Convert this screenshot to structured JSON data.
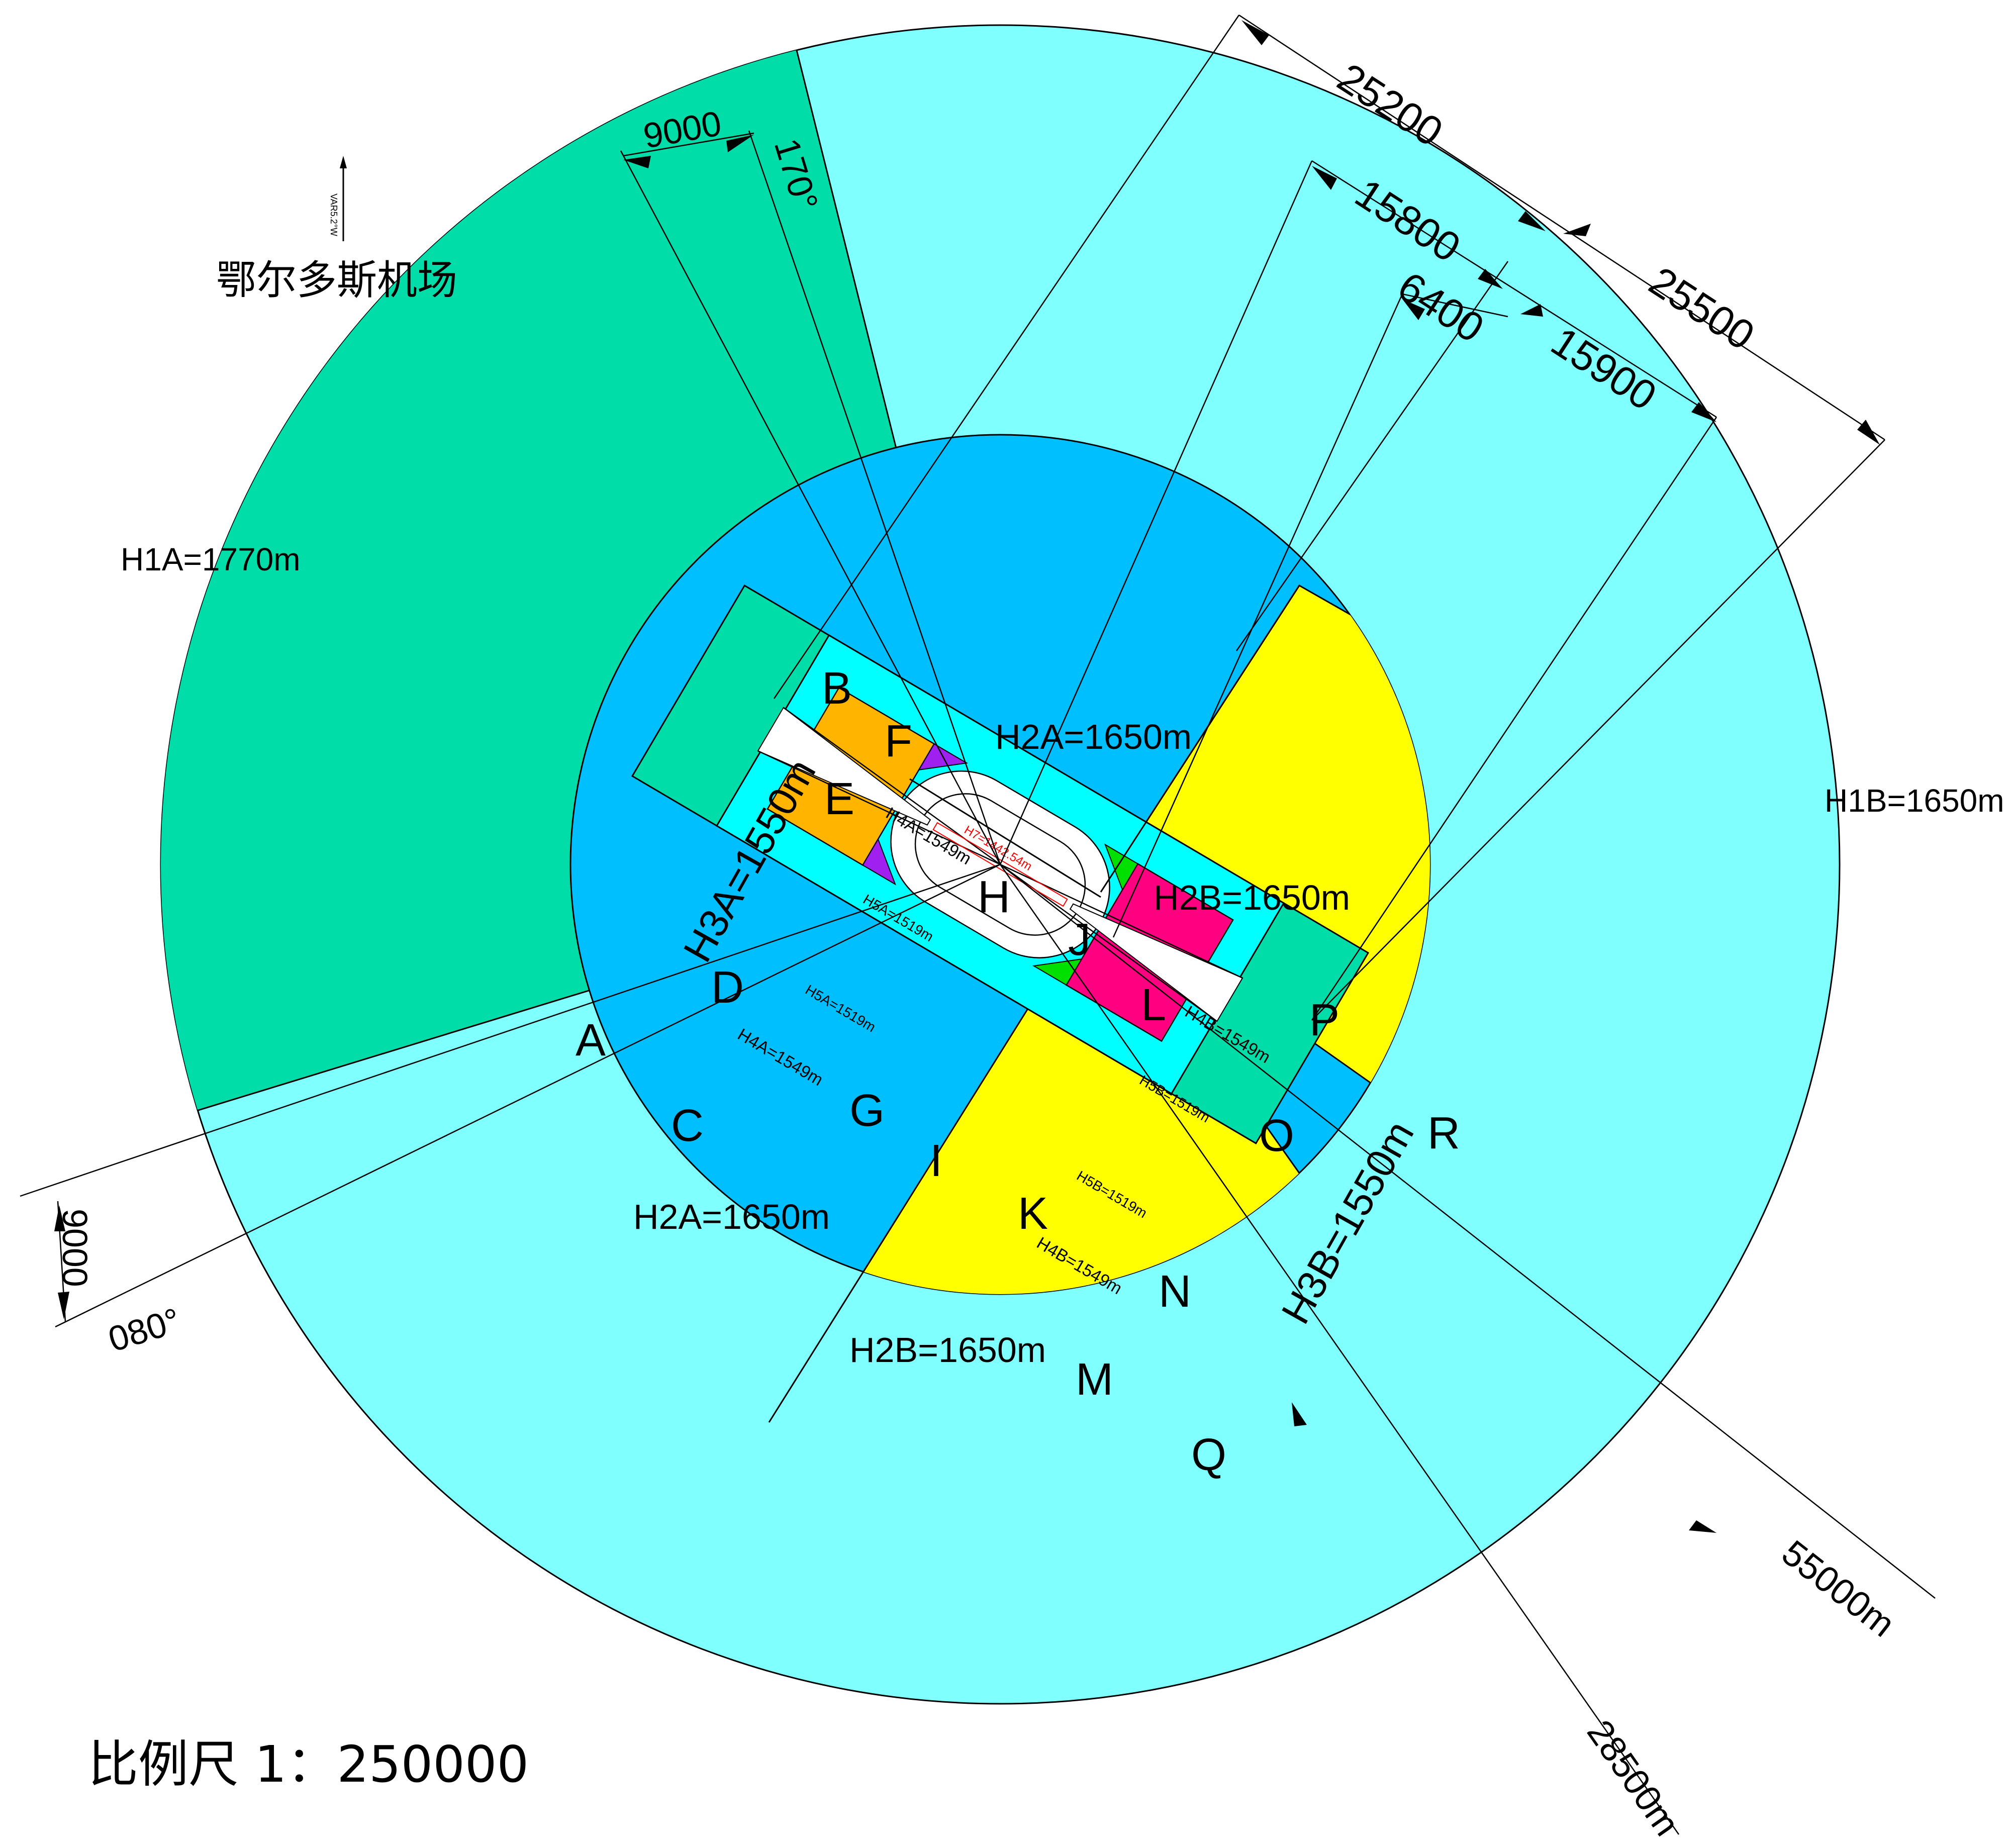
{
  "title": "鄂尔多斯机场",
  "scale": "比例尺 1：250000",
  "north_marker": "VAR5.2°W",
  "colors": {
    "outer": "#80FFFF",
    "sector": "#00DDA8",
    "inner": "#00BFFF",
    "yellow": "#FFFF00",
    "strip": "#00DDA8",
    "band": "#00FFFF",
    "orange": "#FFB400",
    "magenta": "#FF0080",
    "purple": "#A020F0",
    "green": "#00E000",
    "red_text": "#FF0000"
  },
  "zones": {
    "h1a": "H1A=1770m",
    "h1b": "H1B=1650m",
    "h2a_top": "H2A=1650m",
    "h2a_bottom": "H2A=1650m",
    "h2b_right": "H2B=1650m",
    "h2b_bottom": "H2B=1650m",
    "h3a": "H3A=1550m",
    "h3b": "H3B=1550m",
    "h4a_top": "H4A=1549m",
    "h4a_bottom": "H4A=1549m",
    "h4b_top": "H4B=1549m",
    "h4b_bottom": "H4B=1549m",
    "h5a_top": "H5A=1519m",
    "h5a_bottom": "H5A=1519m",
    "h5b_top": "H5B=1519m",
    "h5b_bottom": "H5B=1519m",
    "h7": "H7=1442.54m"
  },
  "points": [
    "A",
    "B",
    "C",
    "D",
    "E",
    "F",
    "G",
    "H",
    "I",
    "J",
    "K",
    "L",
    "M",
    "N",
    "O",
    "P",
    "Q",
    "R"
  ],
  "dimensions": {
    "d25200": "25200",
    "d15800": "15800",
    "d6400": "6400",
    "d25500": "25500",
    "d15900": "15900",
    "d9000_top": "9000",
    "d9000_left": "9000",
    "angle170": "170°",
    "angle080": "080°",
    "r55000": "55000m",
    "r28500": "28500m"
  }
}
